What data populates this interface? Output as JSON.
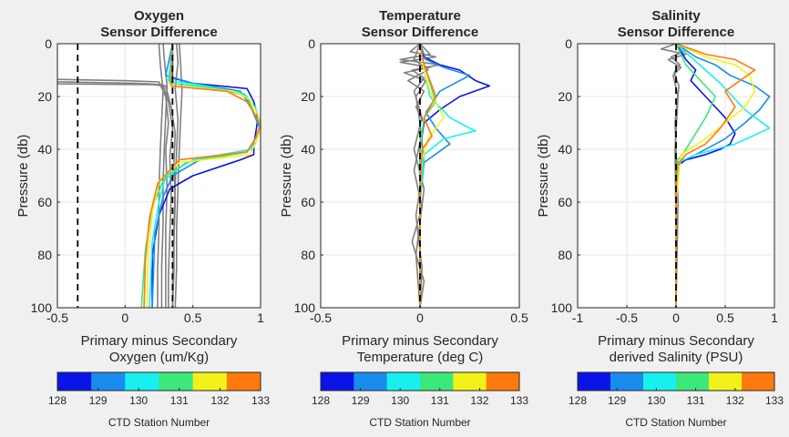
{
  "colorbar": {
    "ticks": [
      "128",
      "129",
      "130",
      "131",
      "132",
      "133"
    ],
    "label": "CTD Station Number",
    "colors": [
      "#0a14e6",
      "#1a8cf0",
      "#18f0f0",
      "#3ce87a",
      "#f2f21a",
      "#ff7a0a"
    ]
  },
  "chart_data": [
    {
      "type": "line",
      "title": [
        "Oxygen",
        "Sensor Difference"
      ],
      "xlabel": [
        "Primary minus Secondary",
        "Oxygen (um/Kg)"
      ],
      "ylabel": "Pressure (db)",
      "xlim": [
        -0.5,
        1
      ],
      "ylim": [
        0,
        100
      ],
      "y_reversed": true,
      "xticks": [
        -0.5,
        0,
        0.5,
        1
      ],
      "xtick_labels": [
        "-0.5",
        "0",
        "0.5",
        "1"
      ],
      "yticks": [
        0,
        20,
        40,
        60,
        80,
        100
      ],
      "ytick_labels": [
        "0",
        "20",
        "40",
        "60",
        "80",
        "100"
      ],
      "ref_lines": [
        {
          "x": -0.35,
          "style": "dashed"
        },
        {
          "x": 0.35,
          "style": "dashed"
        }
      ],
      "series": [
        {
          "color": "#0a14e6",
          "x": [
            0.35,
            0.35,
            0.5,
            0.9,
            0.95,
            0.98,
            0.97,
            0.95,
            0.95,
            0.85,
            0.5,
            0.33,
            0.25,
            0.2,
            0.2
          ],
          "y": [
            0,
            13,
            15,
            17,
            22,
            28,
            32,
            38,
            42,
            44,
            50,
            55,
            65,
            80,
            100
          ]
        },
        {
          "color": "#1a8cf0",
          "x": [
            0.35,
            0.3,
            0.5,
            0.85,
            0.92,
            0.97,
            1.0,
            0.95,
            0.9,
            0.55,
            0.35,
            0.28,
            0.22,
            0.2
          ],
          "y": [
            0,
            12,
            15,
            18,
            23,
            29,
            33,
            37,
            41,
            44,
            50,
            58,
            72,
            100
          ]
        },
        {
          "color": "#18f0f0",
          "x": [
            0.35,
            0.32,
            0.6,
            0.88,
            0.96,
            1.0,
            0.97,
            0.93,
            0.5,
            0.3,
            0.25,
            0.2,
            0.18
          ],
          "y": [
            0,
            14,
            16,
            19,
            24,
            30,
            35,
            40,
            44,
            50,
            60,
            75,
            100
          ]
        },
        {
          "color": "#3ce87a",
          "x": [
            0.35,
            0.33,
            0.7,
            0.9,
            0.95,
            1.0,
            0.96,
            0.9,
            0.45,
            0.28,
            0.2,
            0.15,
            0.12
          ],
          "y": [
            0,
            15,
            17,
            20,
            26,
            31,
            36,
            41,
            45,
            52,
            62,
            78,
            100
          ]
        },
        {
          "color": "#f2f21a",
          "x": [
            0.35,
            0.34,
            0.8,
            0.92,
            0.98,
            1.0,
            0.97,
            0.92,
            0.4,
            0.25,
            0.2,
            0.17,
            0.16
          ],
          "y": [
            0,
            16,
            18,
            21,
            27,
            32,
            37,
            42,
            45,
            52,
            64,
            80,
            100
          ]
        },
        {
          "color": "#ff7a0a",
          "x": [
            0.35,
            0.34,
            0.75,
            0.9,
            0.96,
            1.0,
            0.96,
            0.9,
            0.4,
            0.24,
            0.18,
            0.15,
            0.14
          ],
          "y": [
            0,
            16,
            18,
            22,
            27,
            31,
            36,
            41,
            44,
            53,
            66,
            82,
            100
          ]
        }
      ],
      "gray_series": [
        {
          "color": "#808080",
          "x": [
            -1.0,
            0.0,
            0.25,
            0.3,
            0.32,
            0.3,
            0.31,
            0.3,
            0.3,
            0.3
          ],
          "y": [
            13,
            14,
            14.5,
            20,
            30,
            40,
            55,
            70,
            85,
            100
          ]
        },
        {
          "color": "#808080",
          "x": [
            -1.0,
            0.1,
            0.28,
            0.32,
            0.35,
            0.33,
            0.34,
            0.33,
            0.32,
            0.32
          ],
          "y": [
            14,
            15,
            15.5,
            22,
            32,
            43,
            58,
            72,
            88,
            100
          ]
        },
        {
          "color": "#808080",
          "x": [
            -1.0,
            0.2,
            0.3,
            0.34,
            0.37,
            0.36,
            0.37,
            0.36,
            0.35,
            0.35
          ],
          "y": [
            15,
            15.5,
            16,
            24,
            34,
            45,
            60,
            74,
            90,
            100
          ]
        },
        {
          "color": "#808080",
          "x": [
            0.25,
            0.26,
            0.28,
            0.27,
            0.26,
            0.25,
            0.25,
            0.24,
            0.24
          ],
          "y": [
            0,
            8,
            18,
            28,
            40,
            55,
            70,
            85,
            100
          ]
        },
        {
          "color": "#808080",
          "x": [
            0.4,
            0.41,
            0.42,
            0.41,
            0.4,
            0.39,
            0.38,
            0.38,
            0.37
          ],
          "y": [
            0,
            8,
            18,
            28,
            40,
            55,
            70,
            85,
            100
          ]
        },
        {
          "color": "#808080",
          "x": [
            0.28,
            0.29,
            0.31,
            0.3,
            0.29,
            0.28,
            0.28,
            0.27,
            0.27
          ],
          "y": [
            0,
            6,
            16,
            27,
            39,
            52,
            68,
            84,
            100
          ]
        },
        {
          "color": "#808080",
          "x": [
            0.38,
            0.39,
            0.37,
            0.39,
            0.38,
            0.37,
            0.36,
            0.36,
            0.35
          ],
          "y": [
            0,
            7,
            17,
            29,
            41,
            54,
            69,
            86,
            100
          ]
        }
      ]
    },
    {
      "type": "line",
      "title": [
        "Temperature",
        "Sensor Difference"
      ],
      "xlabel": [
        "Primary minus Secondary",
        "Temperature (deg C)"
      ],
      "ylabel": "Pressure (db)",
      "xlim": [
        -0.5,
        0.5
      ],
      "ylim": [
        0,
        100
      ],
      "y_reversed": true,
      "xticks": [
        -0.5,
        0,
        0.5
      ],
      "xtick_labels": [
        "-0.5",
        "0",
        "0.5"
      ],
      "yticks": [
        0,
        20,
        40,
        60,
        80,
        100
      ],
      "ytick_labels": [
        "0",
        "20",
        "40",
        "60",
        "80",
        "100"
      ],
      "ref_lines": [
        {
          "x": 0,
          "style": "dashed"
        }
      ],
      "series": [
        {
          "color": "#0a14e6",
          "x": [
            0,
            0.02,
            0.1,
            0.2,
            0.28,
            0.35,
            0.2,
            0.1,
            0.02,
            0,
            0,
            0,
            0
          ],
          "y": [
            0,
            5,
            8,
            10,
            14,
            16,
            20,
            25,
            30,
            40,
            60,
            80,
            100
          ]
        },
        {
          "color": "#1a8cf0",
          "x": [
            0,
            0.03,
            0.12,
            0.25,
            0.1,
            0.03,
            0.08,
            0.15,
            0.02,
            0,
            0,
            0
          ],
          "y": [
            0,
            6,
            9,
            12,
            18,
            26,
            32,
            38,
            45,
            60,
            80,
            100
          ]
        },
        {
          "color": "#18f0f0",
          "x": [
            0,
            0.02,
            0.05,
            0.15,
            0.25,
            0.28,
            0.12,
            0.02,
            0,
            0,
            0
          ],
          "y": [
            0,
            10,
            20,
            28,
            32,
            33,
            36,
            42,
            60,
            80,
            100
          ]
        },
        {
          "color": "#3ce87a",
          "x": [
            0,
            0.01,
            0.05,
            0.08,
            0.02,
            0,
            0,
            0,
            0
          ],
          "y": [
            0,
            5,
            15,
            22,
            28,
            40,
            60,
            80,
            100
          ]
        },
        {
          "color": "#f2f21a",
          "x": [
            0,
            0.02,
            0.05,
            0.12,
            0.04,
            0.01,
            0,
            0,
            0
          ],
          "y": [
            0,
            10,
            18,
            28,
            36,
            44,
            60,
            80,
            100
          ]
        },
        {
          "color": "#ff7a0a",
          "x": [
            0,
            0.02,
            0.06,
            0.08,
            0.02,
            0.06,
            0.01,
            0,
            0,
            0
          ],
          "y": [
            0,
            8,
            16,
            20,
            28,
            35,
            40,
            60,
            80,
            100
          ]
        }
      ],
      "gray_series": [
        {
          "color": "#808080",
          "x": [
            0,
            -0.05,
            0.08,
            -0.1,
            0.05,
            -0.08,
            0.03,
            -0.02,
            0,
            0.02,
            -0.02,
            0.01,
            0
          ],
          "y": [
            0,
            3,
            5,
            7,
            9,
            11,
            14,
            20,
            30,
            45,
            65,
            85,
            100
          ]
        },
        {
          "color": "#808080",
          "x": [
            0,
            0.05,
            -0.1,
            0.1,
            -0.04,
            0.02,
            -0.03,
            0.01,
            -0.03,
            0.02,
            -0.02,
            0
          ],
          "y": [
            0,
            4,
            6,
            8,
            10,
            13,
            18,
            28,
            40,
            55,
            80,
            100
          ]
        },
        {
          "color": "#808080",
          "x": [
            0,
            -0.03,
            0.04,
            -0.06,
            0.02,
            -0.02,
            0.02,
            -0.03,
            0.01,
            -0.04,
            0.02,
            0
          ],
          "y": [
            0,
            6,
            10,
            14,
            18,
            24,
            30,
            48,
            62,
            75,
            90,
            100
          ]
        }
      ]
    },
    {
      "type": "line",
      "title": [
        "Salinity",
        "Sensor Difference"
      ],
      "xlabel": [
        "Primary minus Secondary",
        "derived Salinity (PSU)"
      ],
      "ylabel": "Pressure (db)",
      "xlim": [
        -1,
        1
      ],
      "ylim": [
        0,
        100
      ],
      "y_reversed": true,
      "xticks": [
        -1,
        -0.5,
        0,
        0.5,
        1
      ],
      "xtick_labels": [
        "-1",
        "-0.5",
        "0",
        "0.5",
        "1"
      ],
      "yticks": [
        0,
        20,
        40,
        60,
        80,
        100
      ],
      "ytick_labels": [
        "0",
        "20",
        "40",
        "60",
        "80",
        "100"
      ],
      "ref_lines": [
        {
          "x": 0,
          "style": "dashed"
        }
      ],
      "series": [
        {
          "color": "#0a14e6",
          "x": [
            0,
            0.1,
            0.2,
            0.15,
            0.3,
            0.5,
            0.6,
            0.55,
            0.45,
            0.3,
            0.1,
            0.02,
            0,
            0
          ],
          "y": [
            0,
            6,
            10,
            14,
            20,
            28,
            34,
            38,
            40,
            42,
            44,
            46,
            60,
            100
          ]
        },
        {
          "color": "#1a8cf0",
          "x": [
            0,
            0.2,
            0.4,
            0.55,
            0.8,
            0.95,
            0.85,
            0.7,
            0.5,
            0.2,
            0.02,
            0,
            0
          ],
          "y": [
            0,
            5,
            8,
            12,
            16,
            20,
            25,
            30,
            36,
            42,
            45,
            60,
            100
          ]
        },
        {
          "color": "#18f0f0",
          "x": [
            0,
            0.15,
            0.3,
            0.45,
            0.7,
            0.95,
            0.6,
            0.2,
            0.02,
            0,
            0
          ],
          "y": [
            0,
            5,
            10,
            15,
            25,
            32,
            38,
            42,
            45,
            60,
            100
          ]
        },
        {
          "color": "#3ce87a",
          "x": [
            0,
            0.1,
            0.25,
            0.4,
            0.3,
            0.2,
            0.1,
            0.02,
            0,
            0
          ],
          "y": [
            0,
            8,
            14,
            20,
            28,
            34,
            40,
            44,
            60,
            100
          ]
        },
        {
          "color": "#f2f21a",
          "x": [
            0,
            0.3,
            0.6,
            0.75,
            0.8,
            0.7,
            0.5,
            0.3,
            0.05,
            0,
            0
          ],
          "y": [
            0,
            5,
            8,
            12,
            18,
            24,
            30,
            36,
            42,
            60,
            100
          ]
        },
        {
          "color": "#ff7a0a",
          "x": [
            0,
            0.3,
            0.6,
            0.8,
            0.5,
            0.6,
            0.45,
            0.3,
            0.1,
            0.01,
            0,
            0
          ],
          "y": [
            0,
            4,
            6,
            10,
            18,
            24,
            32,
            38,
            42,
            46,
            60,
            100
          ]
        }
      ],
      "gray_series": [
        {
          "color": "#808080",
          "x": [
            0,
            -0.15,
            0.1,
            -0.08,
            0.05,
            -0.03,
            0.02,
            -0.01,
            0,
            0
          ],
          "y": [
            0,
            2,
            4,
            6,
            9,
            12,
            20,
            40,
            70,
            100
          ]
        },
        {
          "color": "#808080",
          "x": [
            0,
            0.08,
            -0.05,
            0.04,
            -0.02,
            0.03,
            -0.01,
            0.02,
            0
          ],
          "y": [
            0,
            3,
            5,
            8,
            11,
            16,
            30,
            60,
            100
          ]
        }
      ]
    }
  ]
}
